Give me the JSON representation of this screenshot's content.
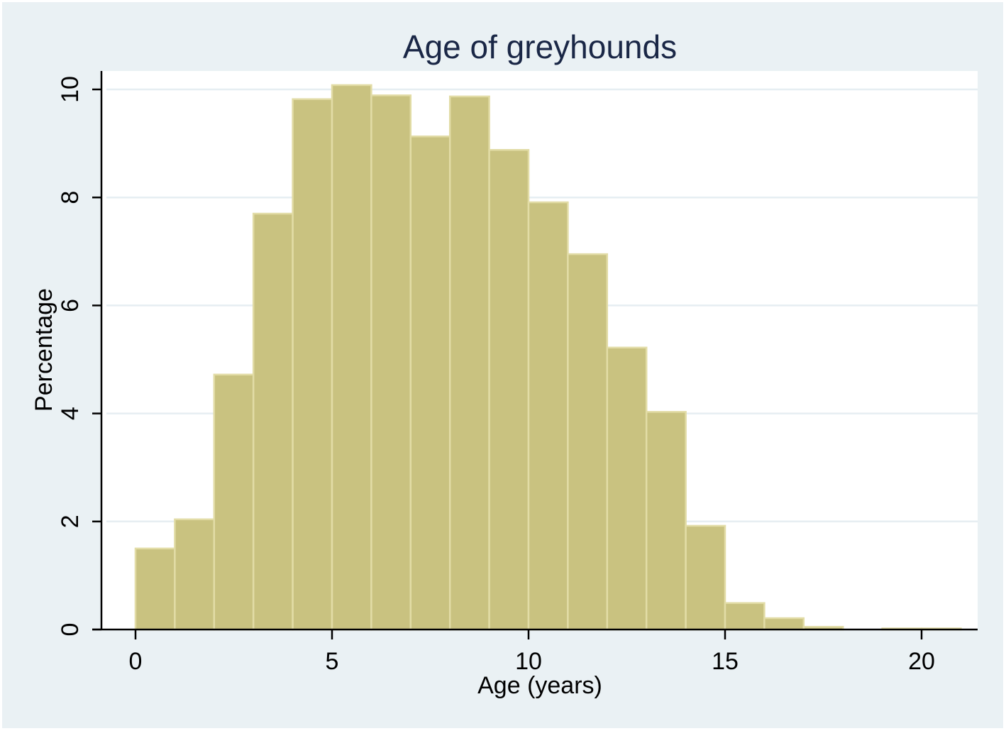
{
  "chart_data": {
    "type": "bar",
    "subtype": "histogram",
    "title": "Age of greyhounds",
    "xlabel": "Age (years)",
    "ylabel": "Percentage",
    "bin_edges": [
      0,
      1,
      2,
      3,
      4,
      5,
      6,
      7,
      8,
      9,
      10,
      11,
      12,
      13,
      14,
      15,
      16,
      17,
      18,
      19,
      20,
      21
    ],
    "categories": [
      "0-1",
      "1-2",
      "2-3",
      "3-4",
      "4-5",
      "5-6",
      "6-7",
      "7-8",
      "8-9",
      "9-10",
      "10-11",
      "11-12",
      "12-13",
      "13-14",
      "14-15",
      "15-16",
      "16-17",
      "17-18",
      "18-19",
      "19-20",
      "20-21"
    ],
    "values": [
      1.5,
      2.04,
      4.72,
      7.7,
      9.82,
      10.08,
      9.89,
      9.13,
      9.87,
      8.88,
      7.91,
      6.95,
      5.22,
      4.03,
      1.92,
      0.49,
      0.21,
      0.05,
      0.0,
      0.01,
      0.01
    ],
    "xlim": [
      -0.9,
      21.4
    ],
    "ylim": [
      0,
      10.3
    ],
    "xticks": [
      0,
      5,
      10,
      15,
      20
    ],
    "yticks": [
      0,
      2,
      4,
      6,
      8,
      10
    ],
    "grid": {
      "y": true,
      "x": false
    },
    "legend": null,
    "colors": {
      "bar_fill": "#c9c280",
      "bar_outline": "#e2dca6",
      "plot_background": "#ffffff",
      "outer_background": "#eaf1f4",
      "gridline": "#e6eef2",
      "title": "#1a2746",
      "axis": "#000000"
    }
  },
  "labels": {
    "title": "Age of greyhounds",
    "xlabel": "Age (years)",
    "ylabel": "Percentage",
    "xticks": [
      "0",
      "5",
      "10",
      "15",
      "20"
    ],
    "yticks": [
      "0",
      "2",
      "4",
      "6",
      "8",
      "10"
    ]
  }
}
